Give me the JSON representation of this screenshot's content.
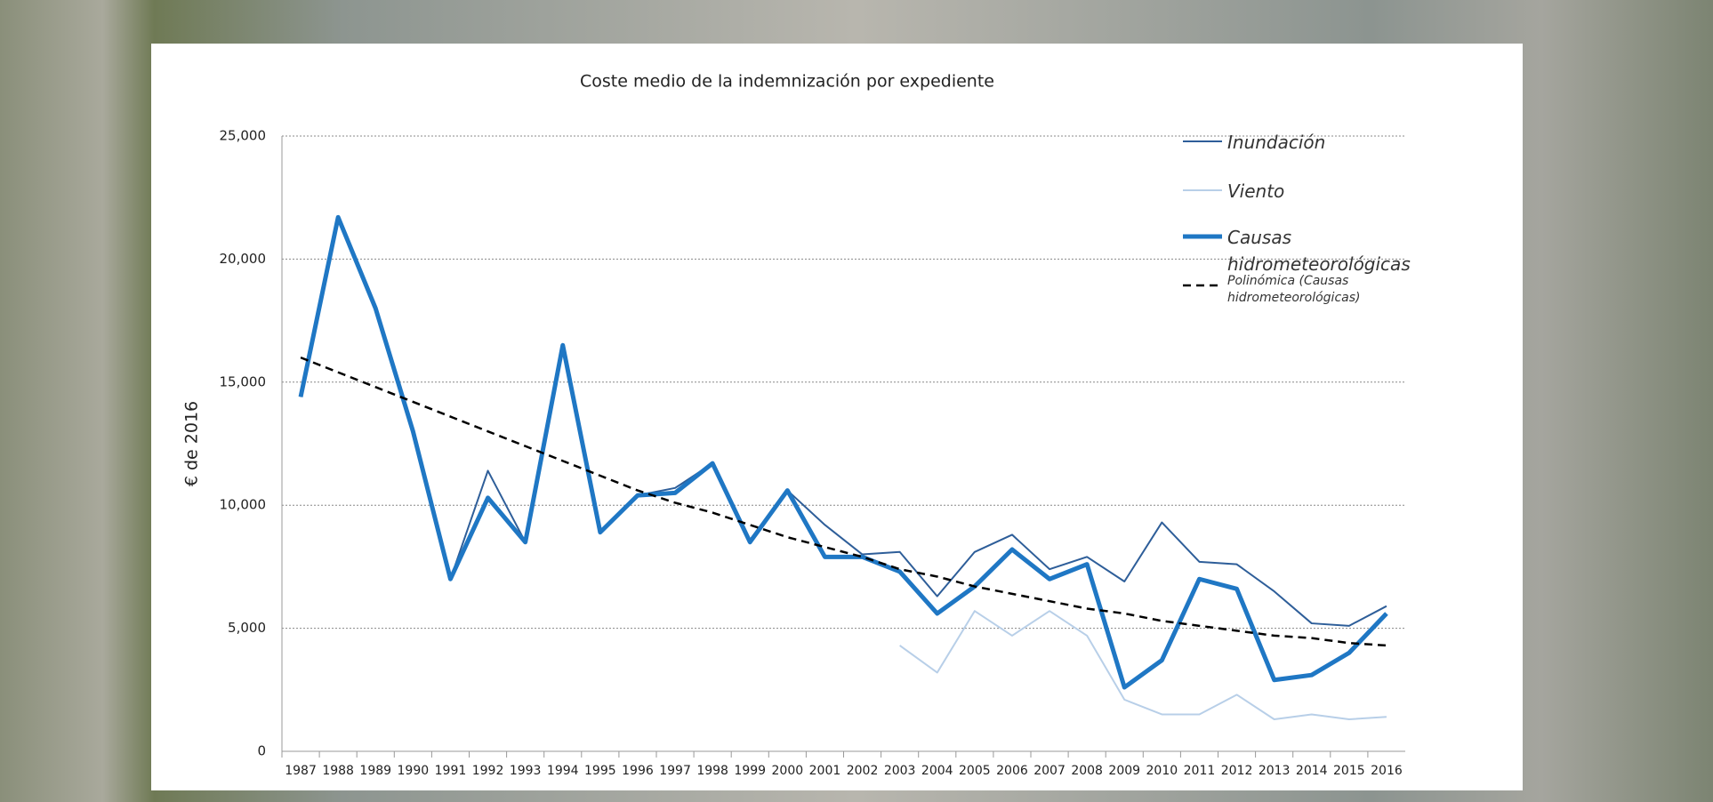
{
  "chart_data": {
    "type": "line",
    "title": "Coste medio de la indemnización por expediente",
    "y_label": "€ de 2016",
    "categories": [
      "1987",
      "1988",
      "1989",
      "1990",
      "1991",
      "1992",
      "1993",
      "1994",
      "1995",
      "1996",
      "1997",
      "1998",
      "1999",
      "2000",
      "2001",
      "2002",
      "2003",
      "2004",
      "2005",
      "2006",
      "2007",
      "2008",
      "2009",
      "2010",
      "2011",
      "2012",
      "2013",
      "2014",
      "2015",
      "2016"
    ],
    "ylim": [
      0,
      25000
    ],
    "yticks": [
      0,
      {
        "value": 5000,
        "label": "5,000"
      },
      {
        "value": 10000,
        "label": "10,000"
      },
      {
        "value": 15000,
        "label": "15,000"
      },
      {
        "value": 20000,
        "label": "20,000"
      },
      {
        "value": 25000,
        "label": "25,000"
      }
    ],
    "grid": true,
    "legend": "right",
    "series": [
      {
        "name": "Inundación",
        "color": "#2e5e99",
        "width": 2,
        "values": [
          14400,
          21700,
          18000,
          13000,
          7000,
          11400,
          8500,
          16500,
          8900,
          10400,
          10700,
          11700,
          8600,
          10600,
          9200,
          8000,
          8100,
          6300,
          8100,
          8800,
          7400,
          7900,
          6900,
          9300,
          7700,
          7600,
          6500,
          5200,
          5100,
          5900
        ]
      },
      {
        "name": "Viento",
        "color": "#b8cfe8",
        "width": 2,
        "values": [
          null,
          null,
          null,
          null,
          null,
          null,
          null,
          null,
          null,
          null,
          null,
          null,
          null,
          null,
          null,
          null,
          4300,
          3200,
          5700,
          4700,
          5700,
          4700,
          2100,
          1500,
          1500,
          2300,
          1300,
          1500,
          1300,
          1400
        ]
      },
      {
        "name": "Causas hidrometeorológicas",
        "color": "#1f77c4",
        "width": 5,
        "values": [
          14400,
          21700,
          18000,
          13000,
          7000,
          10300,
          8500,
          16500,
          8900,
          10400,
          10500,
          11700,
          8500,
          10600,
          7900,
          7900,
          7300,
          5600,
          6700,
          8200,
          7000,
          7600,
          2600,
          3700,
          7000,
          6600,
          2900,
          3100,
          4000,
          5600
        ]
      },
      {
        "name": "Polinómica (Causas hidrometeorológicas)",
        "color": "#000000",
        "width": 2.5,
        "dashed": true,
        "values": [
          16000,
          15400,
          14800,
          14200,
          13600,
          13000,
          12400,
          11800,
          11200,
          10600,
          10100,
          9700,
          9200,
          8700,
          8300,
          7900,
          7400,
          7100,
          6700,
          6400,
          6100,
          5800,
          5600,
          5300,
          5100,
          4900,
          4700,
          4600,
          4400,
          4300
        ]
      }
    ]
  }
}
